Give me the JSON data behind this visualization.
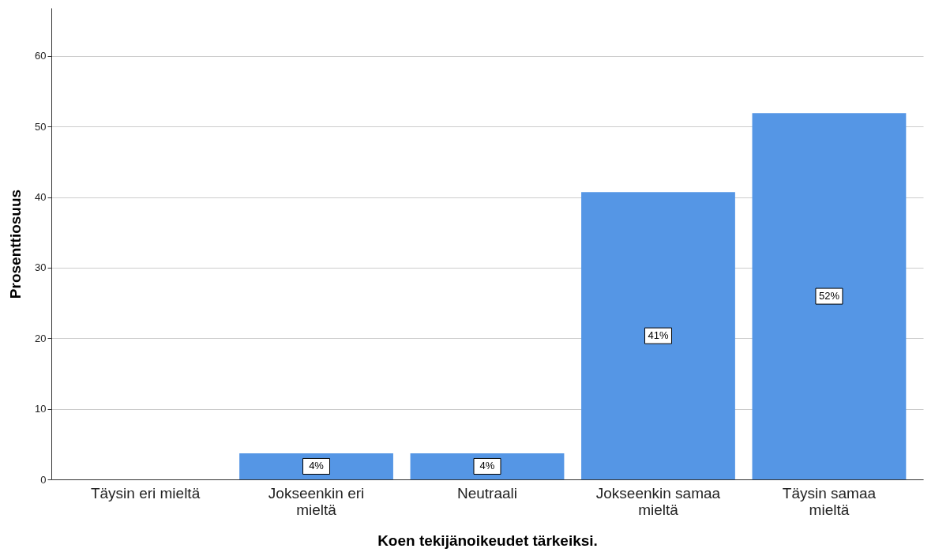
{
  "chart_data": {
    "type": "bar",
    "xlabel": "Koen tekijänoikeudet tärkeiksi.",
    "ylabel": "Prosenttiosuus",
    "categories": [
      "Täysin eri mieltä",
      "Jokseenkin eri mieltä",
      "Neutraali",
      "Jokseenkin samaa mieltä",
      "Täysin samaa mieltä"
    ],
    "values": [
      0,
      3.7,
      3.7,
      40.7,
      51.9
    ],
    "value_labels": [
      null,
      "4%",
      "4%",
      "41%",
      "52%"
    ],
    "color": "#5596e5",
    "ylim": [
      0,
      66.8
    ],
    "yticks": [
      0,
      10,
      20,
      30,
      40,
      50,
      60
    ],
    "grid": "y"
  }
}
